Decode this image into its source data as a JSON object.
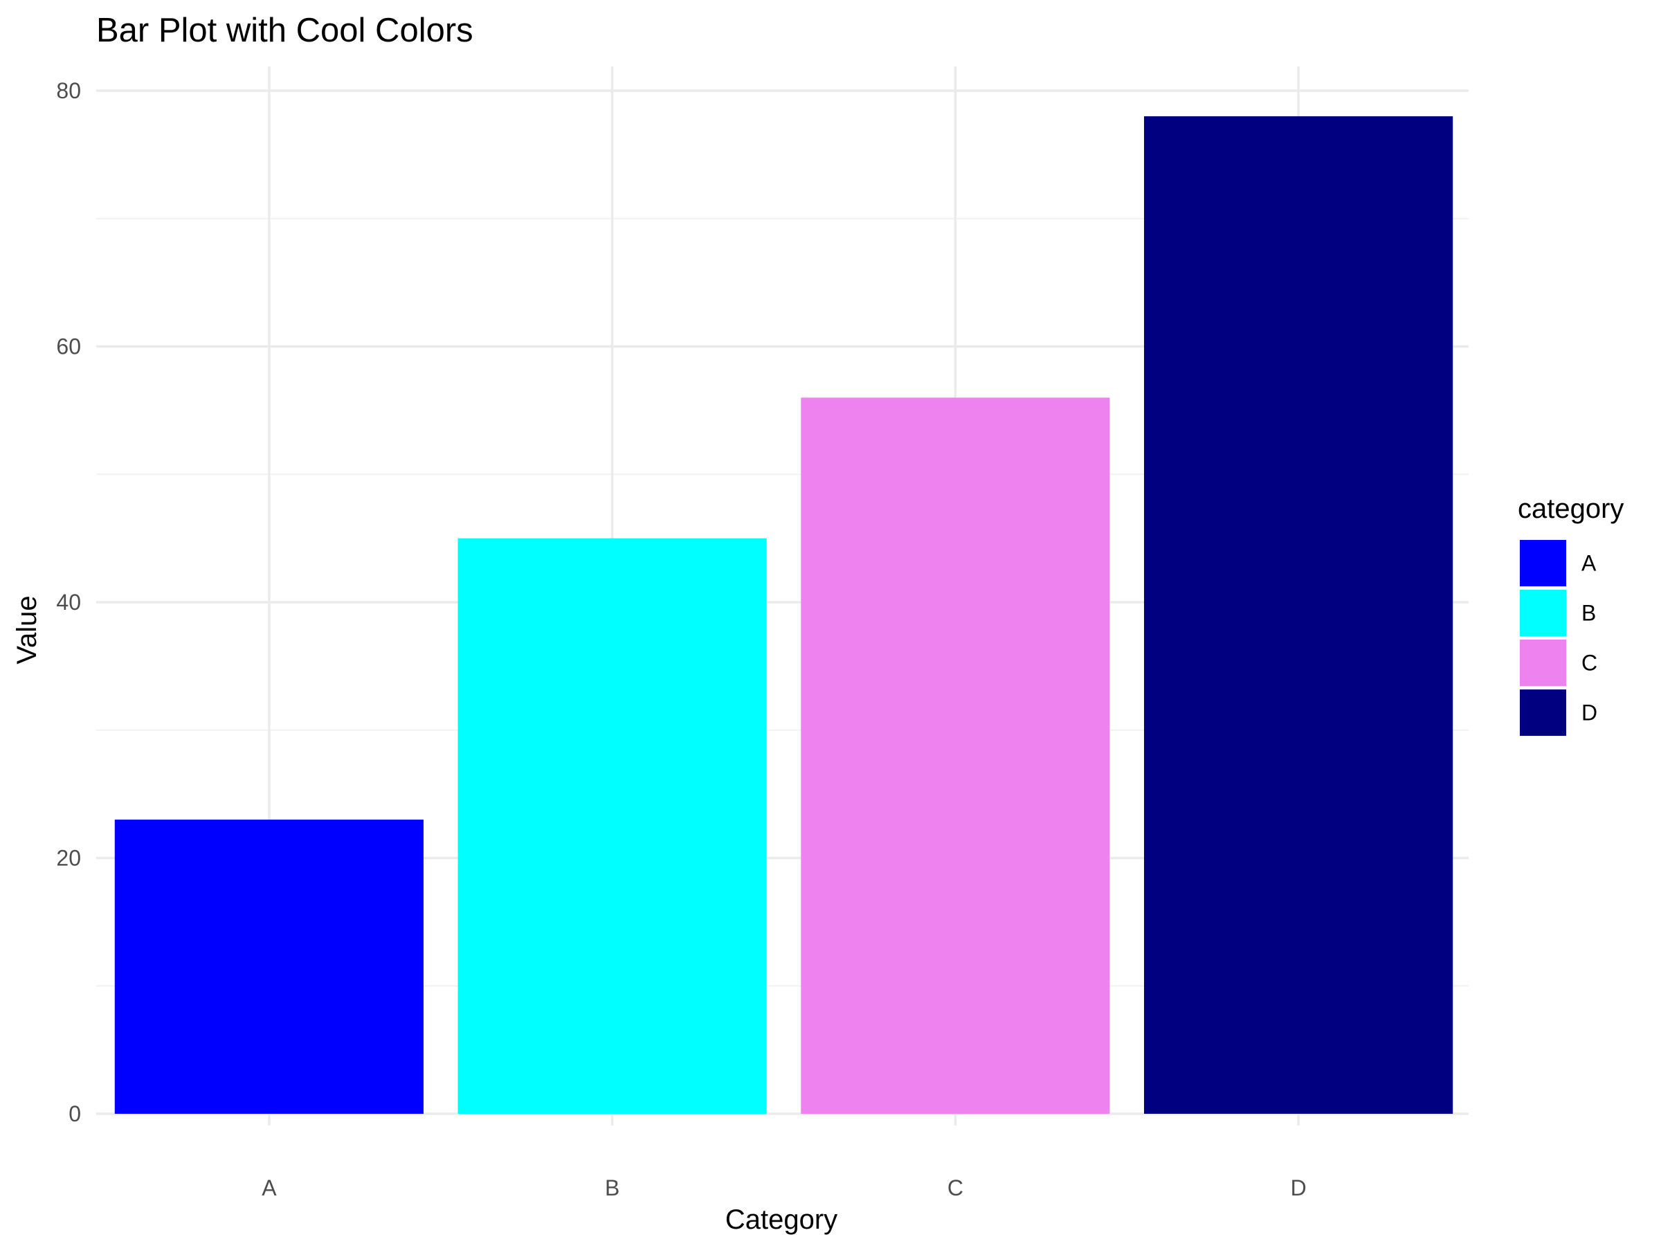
{
  "chart_data": {
    "type": "bar",
    "title": "Bar Plot with Cool Colors",
    "xlabel": "Category",
    "ylabel": "Value",
    "categories": [
      "A",
      "B",
      "C",
      "D"
    ],
    "values": [
      23,
      45,
      56,
      78
    ],
    "colors": [
      "#0000FF",
      "#00FFFF",
      "#EE82EE",
      "#000080"
    ],
    "ylim": [
      0,
      80
    ],
    "yticks": [
      0,
      20,
      40,
      60,
      80
    ],
    "grid": true,
    "legend": {
      "title": "category",
      "placement": "right",
      "entries": [
        "A",
        "B",
        "C",
        "D"
      ]
    }
  },
  "style": {
    "grid_major_color": "#EBEBEB",
    "grid_minor_color": "#F2F2F2",
    "tick_label_color": "#4D4D4D",
    "background": "#FFFFFF"
  }
}
